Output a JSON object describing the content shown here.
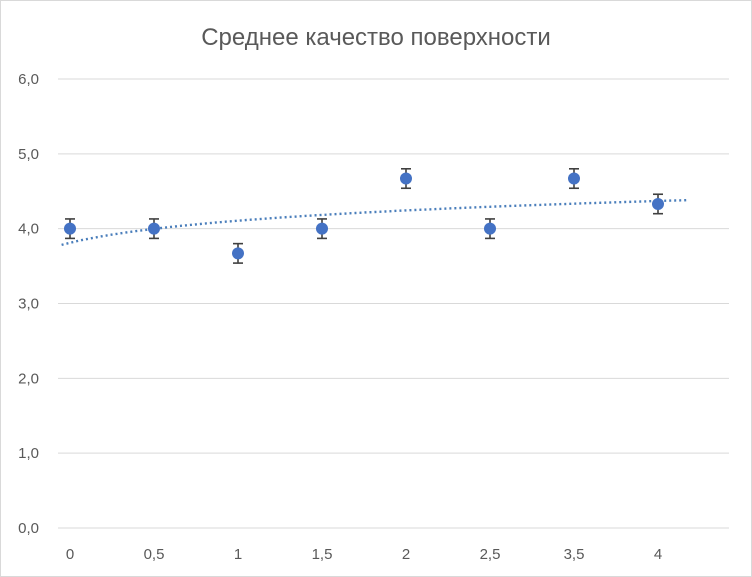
{
  "chart_data": {
    "type": "scatter",
    "title": "Среднее качество поверхности",
    "xlabel": "",
    "ylabel": "",
    "categories": [
      "0",
      "0,5",
      "1",
      "1,5",
      "2",
      "2,5",
      "3,5",
      "4"
    ],
    "series": [
      {
        "values": [
          4.0,
          4.0,
          3.67,
          4.0,
          4.67,
          4.0,
          4.67,
          4.33
        ],
        "error": [
          0.13,
          0.13,
          0.13,
          0.13,
          0.13,
          0.13,
          0.13,
          0.13
        ],
        "trendline": "logarithmic"
      }
    ],
    "ylim": [
      0,
      6
    ],
    "yticks": [
      "0,0",
      "1,0",
      "2,0",
      "3,0",
      "4,0",
      "5,0",
      "6,0"
    ],
    "grid": true,
    "colors": {
      "point": "#4472c4",
      "trend": "#4a7ebb",
      "error": "#404040",
      "grid": "#d9d9d9"
    }
  }
}
